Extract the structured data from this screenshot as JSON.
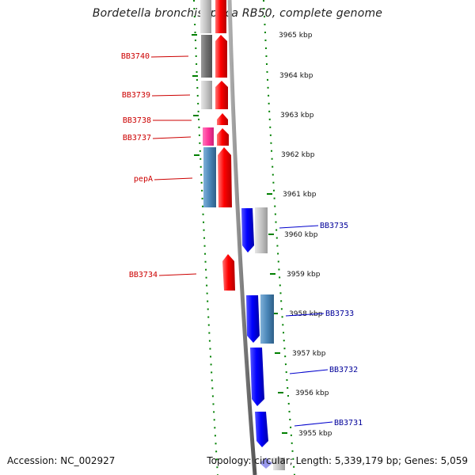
{
  "title": "Bordetella bronchiseptica RB50, complete genome",
  "footer": {
    "accession": "Accession: NC_002927",
    "topology": "Topology: circular; Length: 5,339,179 bp; Genes: 5,059"
  },
  "colors": {
    "forward": "#ff0000",
    "reverse": "#0000ff",
    "gray": "#c0c0c0",
    "dark_gray": "#707070",
    "magenta": "#ff3399",
    "steel_blue": "#4a86b8",
    "backbone": "#808080",
    "tick": "#008000",
    "label_forward": "#cc0000",
    "label_reverse": "#000099"
  },
  "ticks": [
    "3965 kbp",
    "3964 kbp",
    "3963 kbp",
    "3962 kbp",
    "3961 kbp",
    "3960 kbp",
    "3959 kbp",
    "3958 kbp",
    "3957 kbp",
    "3956 kbp",
    "3955 kbp"
  ],
  "gene_labels": {
    "left": [
      "BB3740",
      "BB3739",
      "BB3738",
      "BB3737",
      "pepA",
      "BB3734"
    ],
    "right": [
      "BB3735",
      "BB3733",
      "BB3732",
      "BB3731"
    ]
  }
}
